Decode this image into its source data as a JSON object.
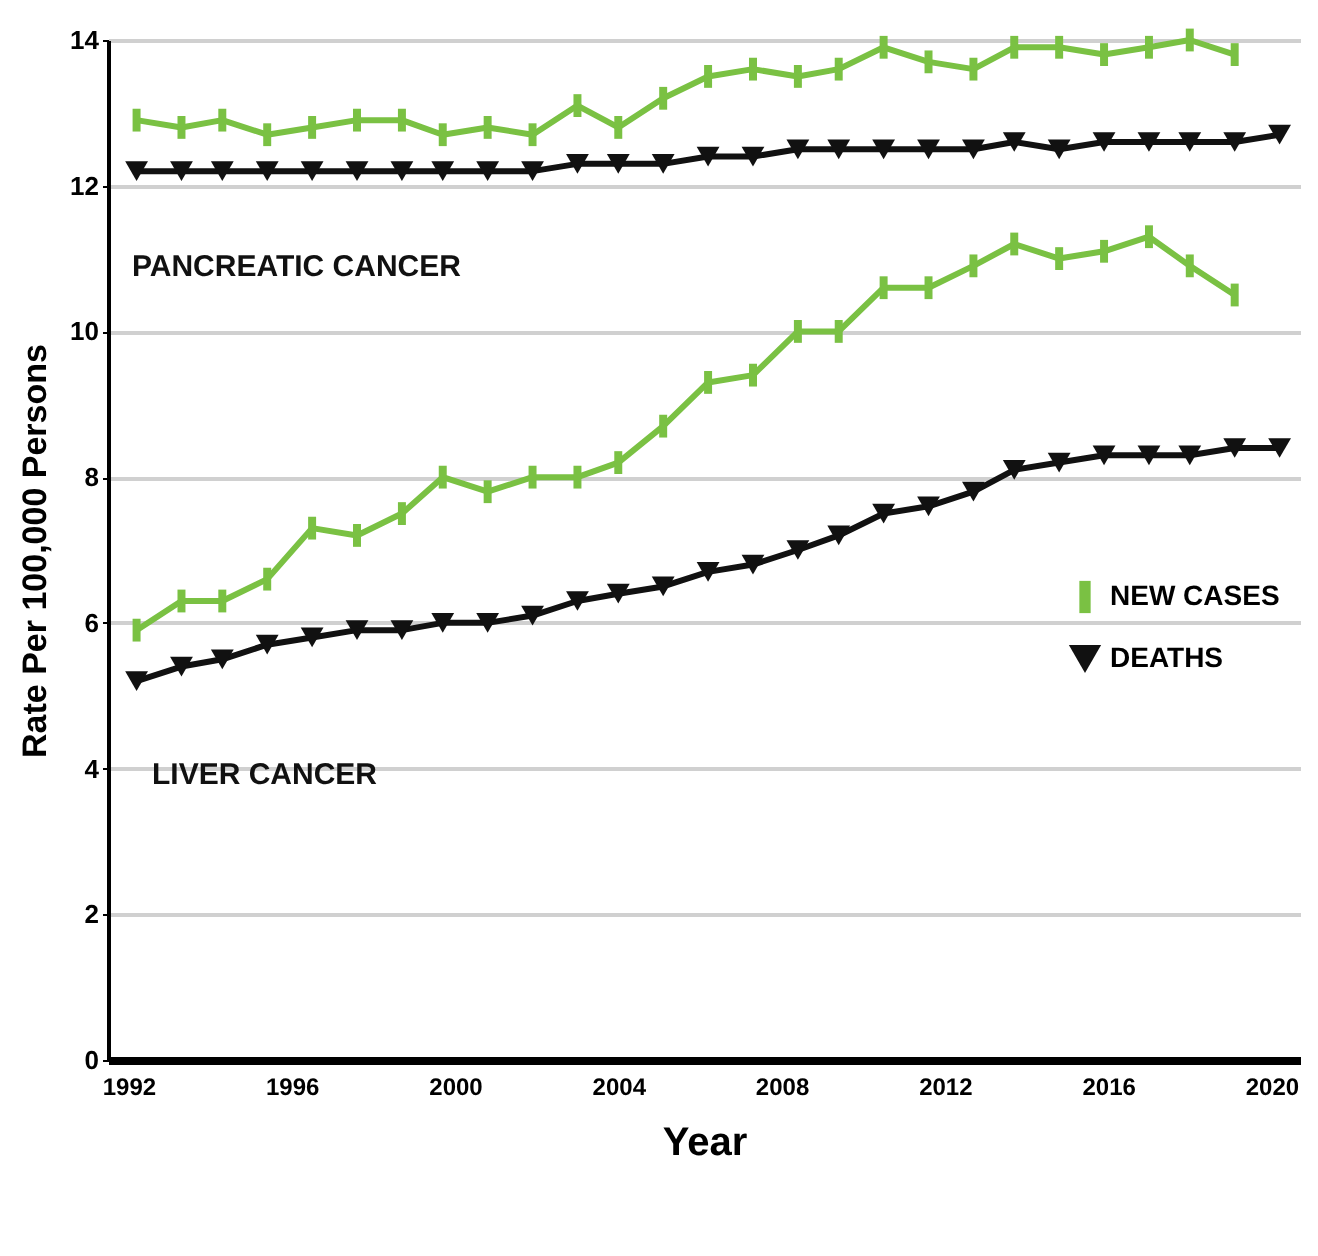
{
  "chart_data": {
    "type": "line",
    "xlabel": "Year",
    "ylabel": "Rate Per 100,000 Persons",
    "x": [
      1992.2,
      1993.3,
      1994.3,
      1995.4,
      1996.5,
      1997.6,
      1998.7,
      1999.7,
      2000.8,
      2001.9,
      2003.0,
      2004.0,
      2005.1,
      2006.2,
      2007.3,
      2008.4,
      2009.4,
      2010.5,
      2011.6,
      2012.7,
      2013.7,
      2014.8,
      2015.9,
      2017.0,
      2018.0,
      2019.1,
      2020.2
    ],
    "series": [
      {
        "name": "NEW CASES",
        "color": "#7ac143",
        "marker": "square",
        "x": [
          1992.2,
          1993.3,
          1994.3,
          1995.4,
          1996.5,
          1997.6,
          1998.7,
          1999.7,
          2000.8,
          2001.9,
          2003.0,
          2004.0,
          2005.1,
          2006.2,
          2007.3,
          2008.4,
          2009.4,
          2010.5,
          2011.6,
          2012.7,
          2013.7,
          2014.8,
          2015.9,
          2017.0,
          2018.0,
          2019.1
        ],
        "values": [
          12.9,
          12.8,
          12.9,
          12.7,
          12.8,
          12.9,
          12.9,
          12.7,
          12.8,
          12.7,
          13.1,
          12.8,
          13.2,
          13.5,
          13.6,
          13.5,
          13.6,
          13.9,
          13.7,
          13.6,
          13.9,
          13.9,
          13.8,
          13.9,
          14.0,
          13.8
        ]
      },
      {
        "name": "DEATHS",
        "color": "#111111",
        "marker": "triangle",
        "values": [
          12.2,
          12.2,
          12.2,
          12.2,
          12.2,
          12.2,
          12.2,
          12.2,
          12.2,
          12.2,
          12.3,
          12.3,
          12.3,
          12.4,
          12.4,
          12.5,
          12.5,
          12.5,
          12.5,
          12.5,
          12.6,
          12.5,
          12.6,
          12.6,
          12.6,
          12.6,
          12.7
        ]
      },
      {
        "color": "#7ac143",
        "marker": "square",
        "x": [
          1992.2,
          1993.3,
          1994.3,
          1995.4,
          1996.5,
          1997.6,
          1998.7,
          1999.7,
          2000.8,
          2001.9,
          2003.0,
          2004.0,
          2005.1,
          2006.2,
          2007.3,
          2008.4,
          2009.4,
          2010.5,
          2011.6,
          2012.7,
          2013.7,
          2014.8,
          2015.9,
          2017.0,
          2018.0,
          2019.1
        ],
        "values": [
          5.9,
          6.3,
          6.3,
          6.6,
          7.3,
          7.2,
          7.5,
          8.0,
          7.8,
          8.0,
          8.0,
          8.2,
          8.7,
          9.3,
          9.4,
          10.0,
          10.0,
          10.6,
          10.6,
          10.9,
          11.2,
          11.0,
          11.1,
          11.3,
          10.9,
          10.5
        ]
      },
      {
        "color": "#111111",
        "marker": "triangle",
        "values": [
          5.2,
          5.4,
          5.5,
          5.7,
          5.8,
          5.9,
          5.9,
          6.0,
          6.0,
          6.1,
          6.3,
          6.4,
          6.5,
          6.7,
          6.8,
          7.0,
          7.2,
          7.5,
          7.6,
          7.8,
          8.1,
          8.2,
          8.3,
          8.3,
          8.3,
          8.4,
          8.4
        ]
      }
    ],
    "annotations": [
      "PANCREATIC CANCER",
      "LIVER CANCER"
    ],
    "xlim": [
      1991.5,
      2020.7
    ],
    "xticks": [
      1992,
      1996,
      2000,
      2004,
      2008,
      2012,
      2016,
      2020
    ],
    "ylim": [
      0,
      14
    ],
    "yticks": [
      0,
      2,
      4,
      6,
      8,
      10,
      12,
      14
    ],
    "grid": "y",
    "legend": "right"
  }
}
